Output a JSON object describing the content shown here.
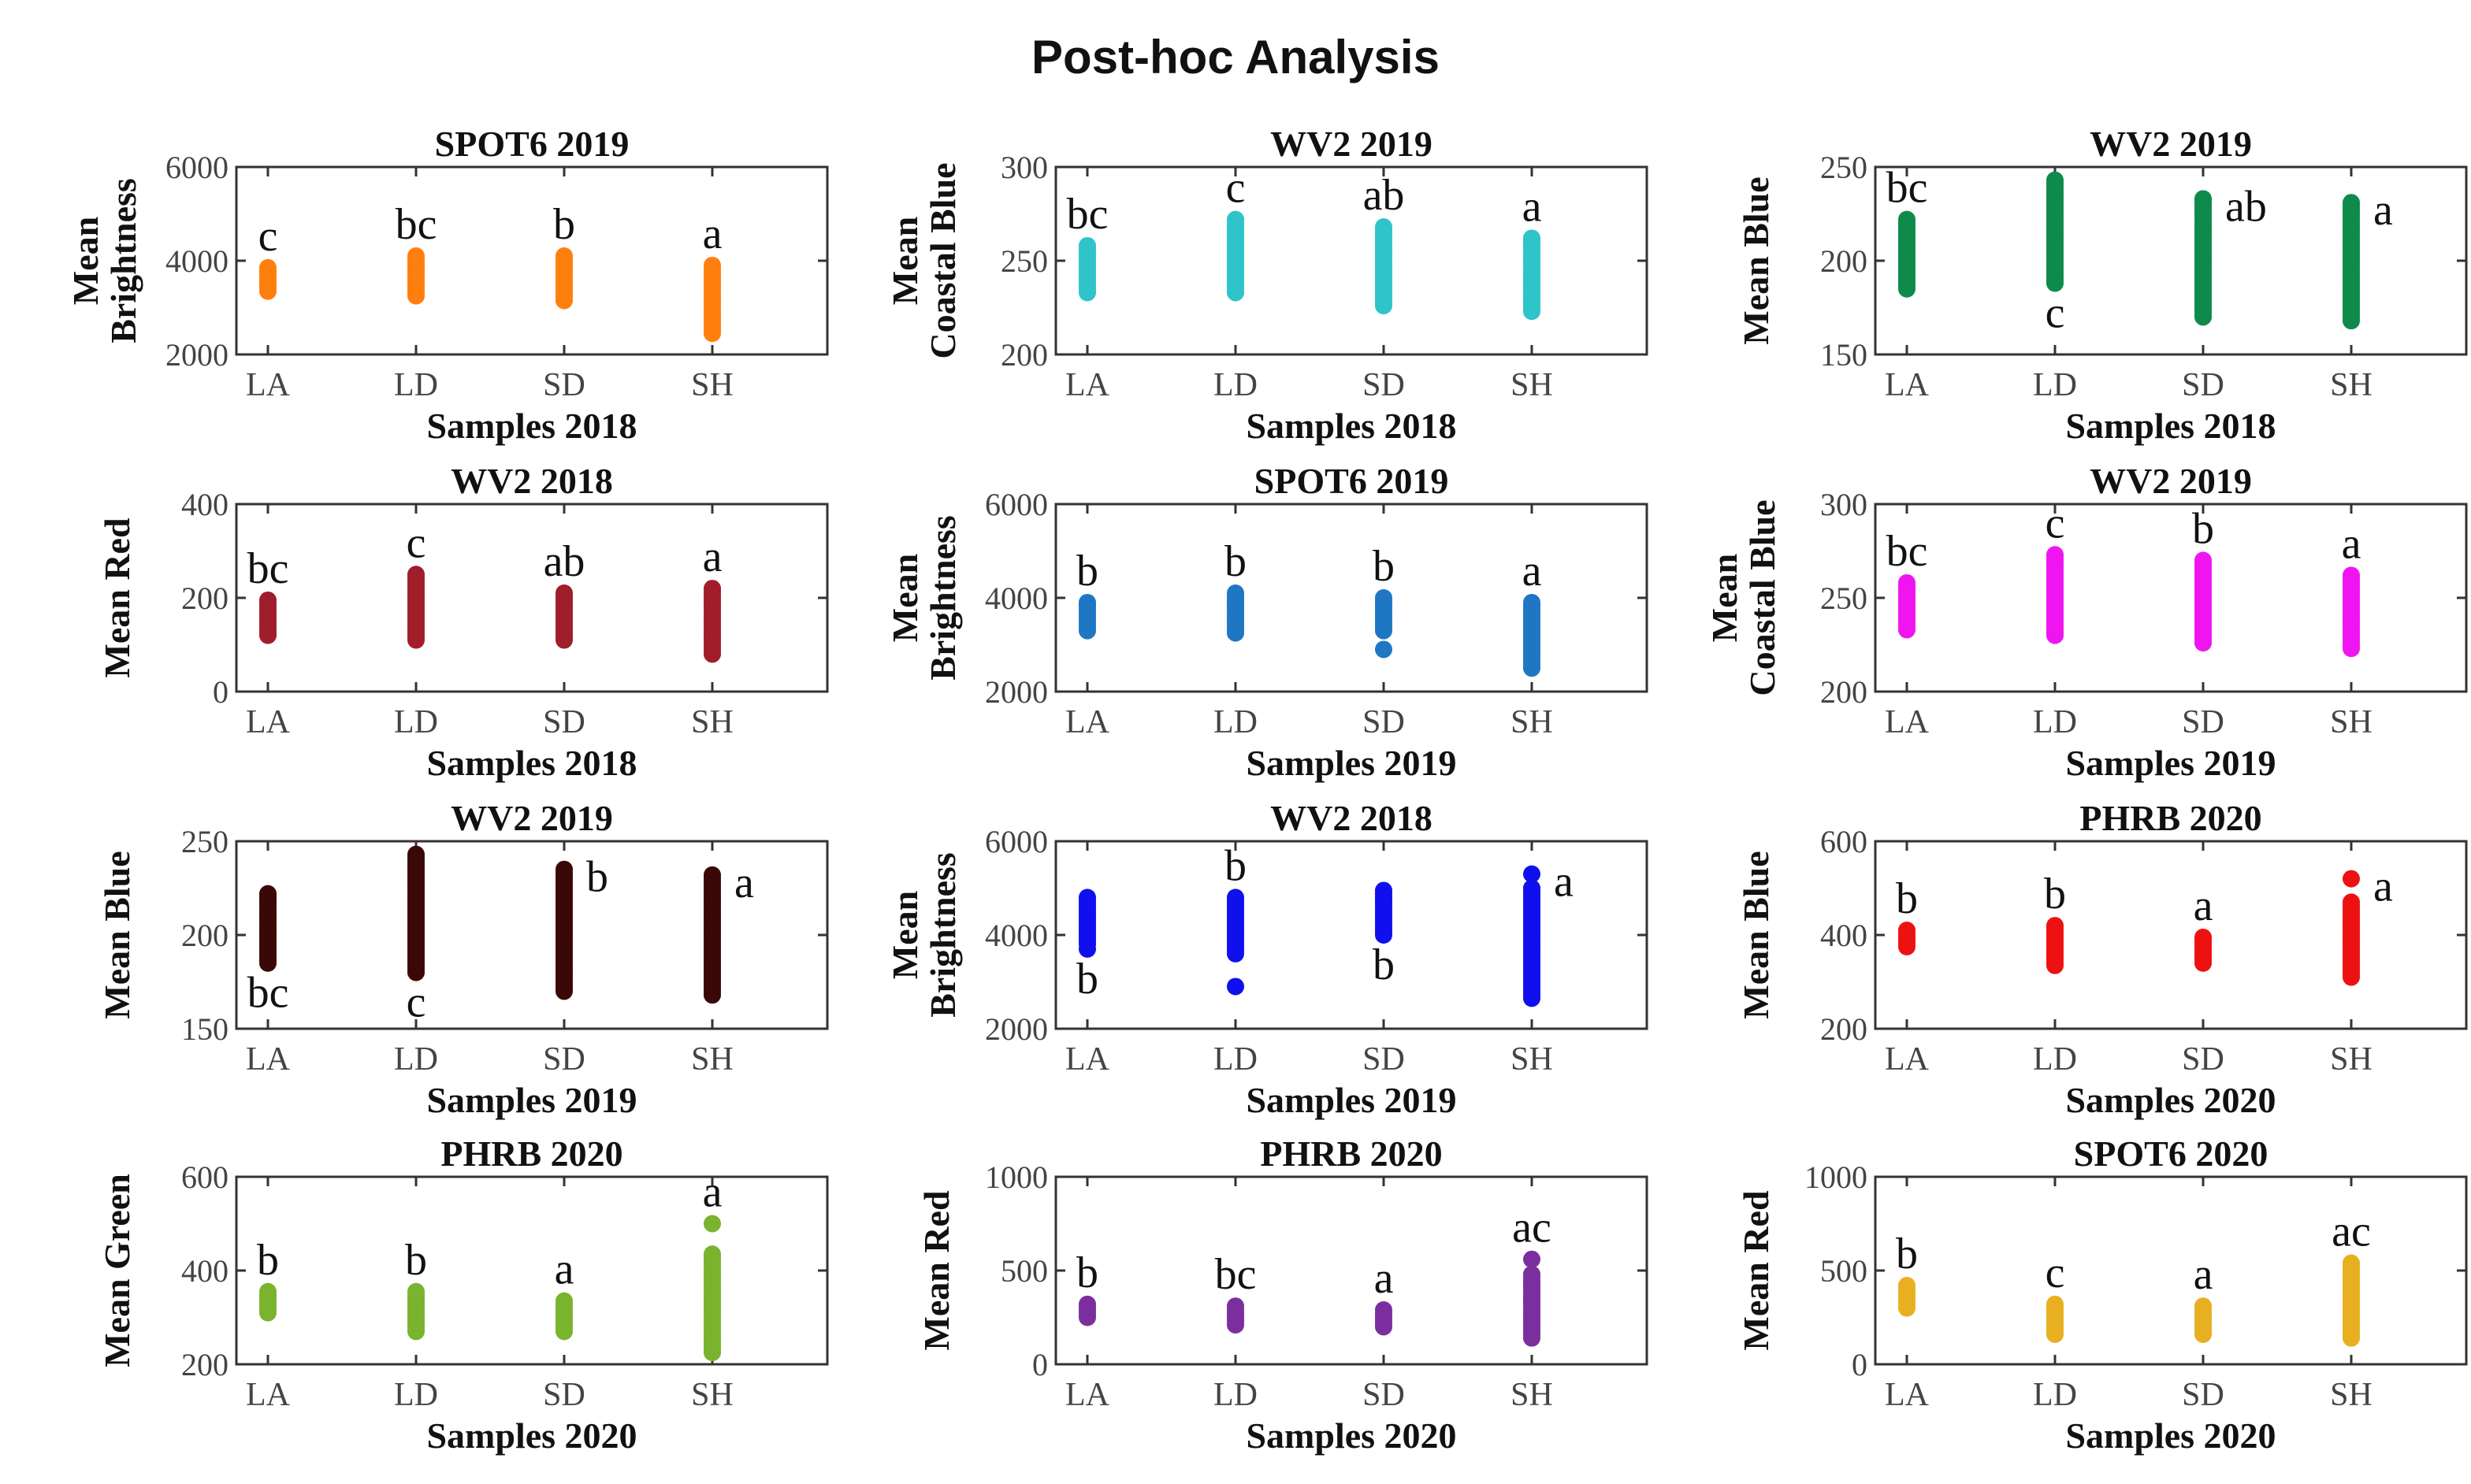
{
  "figure": {
    "title": "Post-hoc Analysis"
  },
  "chart_data": [
    {
      "type": "scatter",
      "title": "SPOT6 2019",
      "ylabel": [
        "Mean",
        "Brightness"
      ],
      "xlabel": "Samples 2018",
      "ylim": [
        2000,
        6000
      ],
      "yticks": [
        2000,
        4000,
        6000
      ],
      "yticklabels": [
        "2000",
        "4000",
        "6000"
      ],
      "categories": [
        "LA",
        "LD",
        "SD",
        "SH"
      ],
      "color": "#ff7f0e",
      "ranges": [
        [
          3350,
          3850
        ],
        [
          3250,
          4100
        ],
        [
          3150,
          4100
        ],
        [
          2450,
          3900
        ]
      ],
      "outliers": [
        [],
        [],
        [],
        []
      ],
      "letters": [
        {
          "text": "c",
          "pos": "above"
        },
        {
          "text": "bc",
          "pos": "above"
        },
        {
          "text": "b",
          "pos": "above"
        },
        {
          "text": "a",
          "pos": "above"
        }
      ]
    },
    {
      "type": "scatter",
      "title": "WV2 2019",
      "ylabel": [
        "Mean",
        "Coastal Blue"
      ],
      "xlabel": "Samples 2018",
      "ylim": [
        200,
        300
      ],
      "yticks": [
        200,
        250,
        300
      ],
      "yticklabels": [
        "200",
        "250",
        "300"
      ],
      "categories": [
        "LA",
        "LD",
        "SD",
        "SH"
      ],
      "color": "#2ec4c9",
      "ranges": [
        [
          233,
          258
        ],
        [
          233,
          272
        ],
        [
          226,
          268
        ],
        [
          223,
          262
        ]
      ],
      "outliers": [
        [],
        [],
        [],
        []
      ],
      "letters": [
        {
          "text": "bc",
          "pos": "above"
        },
        {
          "text": "c",
          "pos": "above"
        },
        {
          "text": "ab",
          "pos": "above"
        },
        {
          "text": "a",
          "pos": "above"
        }
      ]
    },
    {
      "type": "scatter",
      "title": "WV2 2019",
      "ylabel": [
        "Mean Blue"
      ],
      "xlabel": "Samples 2018",
      "ylim": [
        150,
        250
      ],
      "yticks": [
        150,
        200,
        250
      ],
      "yticklabels": [
        "150",
        "200",
        "250"
      ],
      "categories": [
        "LA",
        "LD",
        "SD",
        "SH"
      ],
      "color": "#0e8a4a",
      "ranges": [
        [
          185,
          222
        ],
        [
          188,
          243
        ],
        [
          170,
          233
        ],
        [
          168,
          231
        ]
      ],
      "outliers": [
        [],
        [],
        [],
        []
      ],
      "letters": [
        {
          "text": "bc",
          "pos": "above"
        },
        {
          "text": "c",
          "pos": "below"
        },
        {
          "text": "ab",
          "pos": "right"
        },
        {
          "text": "a",
          "pos": "right"
        }
      ]
    },
    {
      "type": "scatter",
      "title": "WV2 2018",
      "ylabel": [
        "Mean Red"
      ],
      "xlabel": "Samples 2018",
      "ylim": [
        0,
        400
      ],
      "yticks": [
        0,
        200,
        400
      ],
      "yticklabels": [
        "0",
        "200",
        "400"
      ],
      "categories": [
        "LA",
        "LD",
        "SD",
        "SH"
      ],
      "color": "#a01d2c",
      "ranges": [
        [
          120,
          195
        ],
        [
          110,
          250
        ],
        [
          110,
          210
        ],
        [
          80,
          220
        ]
      ],
      "outliers": [
        [],
        [],
        [],
        []
      ],
      "letters": [
        {
          "text": "bc",
          "pos": "above"
        },
        {
          "text": "c",
          "pos": "above"
        },
        {
          "text": "ab",
          "pos": "above"
        },
        {
          "text": "a",
          "pos": "above"
        }
      ]
    },
    {
      "type": "scatter",
      "title": "SPOT6 2019",
      "ylabel": [
        "Mean",
        "Brightness"
      ],
      "xlabel": "Samples 2019",
      "ylim": [
        2000,
        6000
      ],
      "yticks": [
        2000,
        4000,
        6000
      ],
      "yticklabels": [
        "2000",
        "4000",
        "6000"
      ],
      "categories": [
        "LA",
        "LD",
        "SD",
        "SH"
      ],
      "color": "#1f77c4",
      "ranges": [
        [
          3300,
          3900
        ],
        [
          3250,
          4100
        ],
        [
          3300,
          4000
        ],
        [
          2500,
          3900
        ]
      ],
      "outliers": [
        [],
        [],
        [
          2900
        ],
        []
      ],
      "letters": [
        {
          "text": "b",
          "pos": "above"
        },
        {
          "text": "b",
          "pos": "above"
        },
        {
          "text": "b",
          "pos": "above"
        },
        {
          "text": "a",
          "pos": "above"
        }
      ]
    },
    {
      "type": "scatter",
      "title": "WV2 2019",
      "ylabel": [
        "Mean",
        "Coastal Blue"
      ],
      "xlabel": "Samples 2019",
      "ylim": [
        200,
        300
      ],
      "yticks": [
        200,
        250,
        300
      ],
      "yticklabels": [
        "200",
        "250",
        "300"
      ],
      "categories": [
        "LA",
        "LD",
        "SD",
        "SH"
      ],
      "color": "#f015f0",
      "ranges": [
        [
          233,
          258
        ],
        [
          230,
          273
        ],
        [
          226,
          270
        ],
        [
          223,
          262
        ]
      ],
      "outliers": [
        [],
        [],
        [],
        []
      ],
      "letters": [
        {
          "text": "bc",
          "pos": "above"
        },
        {
          "text": "c",
          "pos": "above"
        },
        {
          "text": "b",
          "pos": "above"
        },
        {
          "text": "a",
          "pos": "above"
        }
      ]
    },
    {
      "type": "scatter",
      "title": "WV2 2019",
      "ylabel": [
        "Mean Blue"
      ],
      "xlabel": "Samples 2019",
      "ylim": [
        150,
        250
      ],
      "yticks": [
        150,
        200,
        250
      ],
      "yticklabels": [
        "150",
        "200",
        "250"
      ],
      "categories": [
        "LA",
        "LD",
        "SD",
        "SH"
      ],
      "color": "#3b0808",
      "ranges": [
        [
          185,
          222
        ],
        [
          180,
          243
        ],
        [
          170,
          235
        ],
        [
          168,
          232
        ]
      ],
      "outliers": [
        [],
        [],
        [],
        []
      ],
      "letters": [
        {
          "text": "bc",
          "pos": "below"
        },
        {
          "text": "c",
          "pos": "below"
        },
        {
          "text": "b",
          "pos": "right"
        },
        {
          "text": "a",
          "pos": "right"
        }
      ]
    },
    {
      "type": "scatter",
      "title": "WV2 2018",
      "ylabel": [
        "Mean",
        "Brightness"
      ],
      "xlabel": "Samples 2019",
      "ylim": [
        2000,
        6000
      ],
      "yticks": [
        2000,
        4000,
        6000
      ],
      "yticklabels": [
        "2000",
        "4000",
        "6000"
      ],
      "categories": [
        "LA",
        "LD",
        "SD",
        "SH"
      ],
      "color": "#1010ee",
      "ranges": [
        [
          3800,
          4800
        ],
        [
          3600,
          4800
        ],
        [
          4000,
          4950
        ],
        [
          2650,
          5000
        ]
      ],
      "outliers": [
        [
          3700
        ],
        [
          2900
        ],
        [],
        [
          5300
        ]
      ],
      "letters": [
        {
          "text": "b",
          "pos": "below"
        },
        {
          "text": "b",
          "pos": "above"
        },
        {
          "text": "b",
          "pos": "below"
        },
        {
          "text": "a",
          "pos": "right"
        }
      ]
    },
    {
      "type": "scatter",
      "title": "PHRB 2020",
      "ylabel": [
        "Mean Blue"
      ],
      "xlabel": "Samples 2020",
      "ylim": [
        200,
        600
      ],
      "yticks": [
        200,
        400,
        600
      ],
      "yticklabels": [
        "200",
        "400",
        "600"
      ],
      "categories": [
        "LA",
        "LD",
        "SD",
        "SH"
      ],
      "color": "#ee1111",
      "ranges": [
        [
          375,
          410
        ],
        [
          335,
          420
        ],
        [
          340,
          395
        ],
        [
          310,
          470
        ]
      ],
      "outliers": [
        [],
        [],
        [],
        [
          520
        ]
      ],
      "letters": [
        {
          "text": "b",
          "pos": "above"
        },
        {
          "text": "b",
          "pos": "above"
        },
        {
          "text": "a",
          "pos": "above"
        },
        {
          "text": "a",
          "pos": "right"
        }
      ]
    },
    {
      "type": "scatter",
      "title": "PHRB 2020",
      "ylabel": [
        "Mean Green"
      ],
      "xlabel": "Samples 2020",
      "ylim": [
        200,
        600
      ],
      "yticks": [
        200,
        400,
        600
      ],
      "yticklabels": [
        "200",
        "400",
        "600"
      ],
      "categories": [
        "LA",
        "LD",
        "SD",
        "SH"
      ],
      "color": "#7ab32e",
      "ranges": [
        [
          310,
          355
        ],
        [
          270,
          355
        ],
        [
          270,
          335
        ],
        [
          225,
          435
        ]
      ],
      "outliers": [
        [],
        [],
        [],
        [
          500
        ]
      ],
      "letters": [
        {
          "text": "b",
          "pos": "above"
        },
        {
          "text": "b",
          "pos": "above"
        },
        {
          "text": "a",
          "pos": "above"
        },
        {
          "text": "a",
          "pos": "above"
        }
      ]
    },
    {
      "type": "scatter",
      "title": "PHRB 2020",
      "ylabel": [
        "Mean Red"
      ],
      "xlabel": "Samples 2020",
      "ylim": [
        0,
        1000
      ],
      "yticks": [
        0,
        500,
        1000
      ],
      "yticklabels": [
        "0",
        "500",
        "1000"
      ],
      "categories": [
        "LA",
        "LD",
        "SD",
        "SH"
      ],
      "color": "#7b2f9e",
      "ranges": [
        [
          250,
          320
        ],
        [
          210,
          310
        ],
        [
          200,
          290
        ],
        [
          140,
          480
        ]
      ],
      "outliers": [
        [],
        [],
        [],
        [
          560
        ]
      ],
      "letters": [
        {
          "text": "b",
          "pos": "above"
        },
        {
          "text": "bc",
          "pos": "above"
        },
        {
          "text": "a",
          "pos": "above"
        },
        {
          "text": "ac",
          "pos": "above"
        }
      ]
    },
    {
      "type": "scatter",
      "title": "SPOT6 2020",
      "ylabel": [
        "Mean Red"
      ],
      "xlabel": "Samples 2020",
      "ylim": [
        0,
        1000
      ],
      "yticks": [
        0,
        500,
        1000
      ],
      "yticklabels": [
        "0",
        "500",
        "1000"
      ],
      "categories": [
        "LA",
        "LD",
        "SD",
        "SH"
      ],
      "color": "#e8b020",
      "ranges": [
        [
          300,
          420
        ],
        [
          160,
          320
        ],
        [
          160,
          310
        ],
        [
          140,
          540
        ]
      ],
      "outliers": [
        [],
        [],
        [],
        []
      ],
      "letters": [
        {
          "text": "b",
          "pos": "above"
        },
        {
          "text": "c",
          "pos": "above"
        },
        {
          "text": "a",
          "pos": "above"
        },
        {
          "text": "ac",
          "pos": "above"
        }
      ]
    }
  ]
}
